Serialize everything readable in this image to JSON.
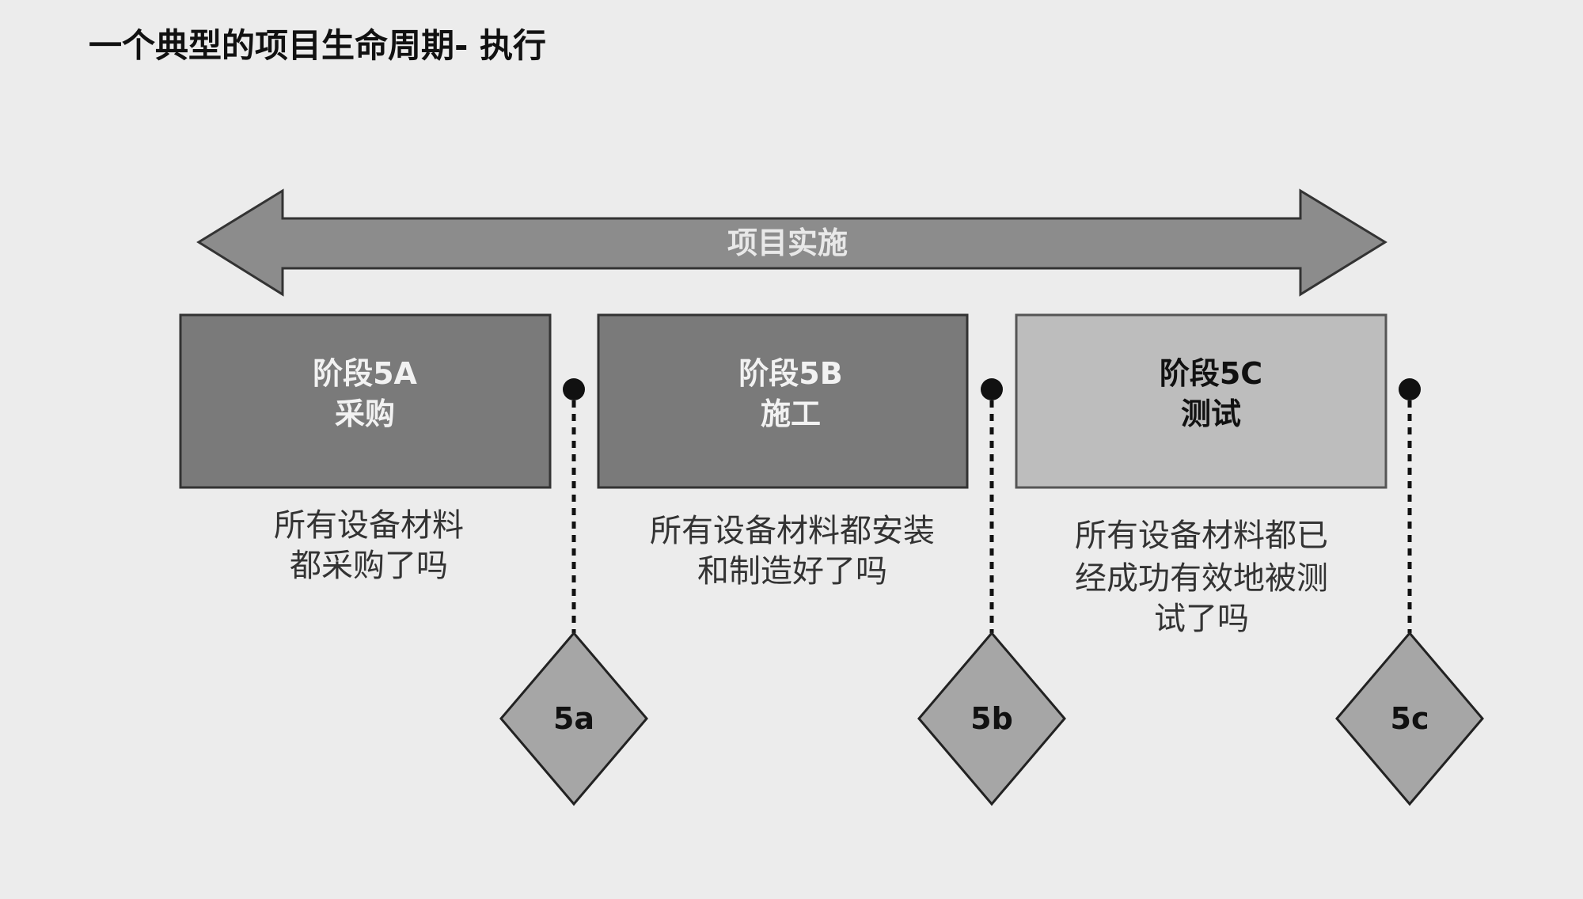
{
  "title": "一个典型的项目生命周期- 执行",
  "band": {
    "label": "项目实施"
  },
  "phases": [
    {
      "name": "阶段5A",
      "sub": "采购",
      "fill": "#7a7a7a",
      "text_color": "#f2f2f2",
      "desc": [
        "所有设备材料",
        "都采购了吗"
      ],
      "milestone": "5a"
    },
    {
      "name": "阶段5B",
      "sub": "施工",
      "fill": "#7a7a7a",
      "text_color": "#f2f2f2",
      "desc": [
        "所有设备材料都安装",
        "和制造好了吗"
      ],
      "milestone": "5b"
    },
    {
      "name": "阶段5C",
      "sub": "测试",
      "fill": "#bdbdbd",
      "text_color": "#111111",
      "desc": [
        "所有设备材料都已",
        "经成功有效地被测",
        "试了吗"
      ],
      "milestone": "5c"
    }
  ],
  "colors": {
    "background": "#ececec",
    "arrow": "#8c8c8c",
    "milestone": "#a6a6a6"
  }
}
